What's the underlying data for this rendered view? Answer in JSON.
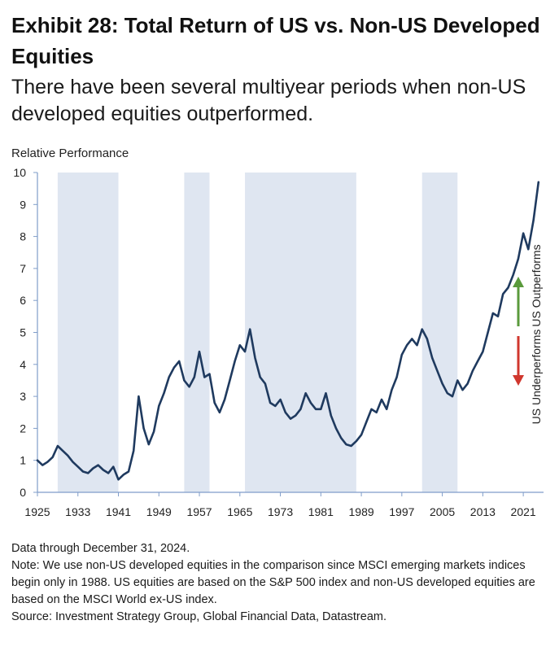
{
  "header": {
    "title": "Exhibit 28: Total Return of US vs. Non-US Developed Equities",
    "subtitle": "There have been several multiyear periods when non-US developed equities outperformed."
  },
  "footer": {
    "data_through": "Data through December 31, 2024.",
    "note": "Note: We use non-US developed equities in the comparison since MSCI emerging markets indices begin only in 1988. US equities are based on the S&P 500 index and non-US developed equities are based on the MSCI World ex-US index.",
    "source": "Source: Investment Strategy Group, Global Financial Data, Datastream."
  },
  "colors": {
    "line": "#1f3a5f",
    "shade": "#dfe6f1",
    "axis": "#7f9cc9",
    "up_arrow": "#5a9a3c",
    "down_arrow": "#d0372e"
  },
  "chart_data": {
    "type": "line",
    "ylabel": "Relative Performance",
    "ylim": [
      0,
      10
    ],
    "yticks": [
      0,
      1,
      2,
      3,
      4,
      5,
      6,
      7,
      8,
      9,
      10
    ],
    "xlim": [
      1925,
      2025
    ],
    "xticks": [
      1925,
      1933,
      1941,
      1949,
      1957,
      1965,
      1973,
      1981,
      1989,
      1997,
      2005,
      2013,
      2021
    ],
    "grid": false,
    "shaded_periods": [
      [
        1929,
        1941
      ],
      [
        1954,
        1959
      ],
      [
        1966,
        1988
      ],
      [
        2001,
        2008
      ]
    ],
    "annotations": {
      "up": "US Outperforms",
      "down": "US Underperforms"
    },
    "series": [
      {
        "x": [
          1925,
          1926,
          1927,
          1928,
          1929,
          1930,
          1931,
          1932,
          1933,
          1934,
          1935,
          1936,
          1937,
          1938,
          1939,
          1940,
          1941,
          1942,
          1943,
          1944,
          1945,
          1946,
          1947,
          1948,
          1949,
          1950,
          1951,
          1952,
          1953,
          1954,
          1955,
          1956,
          1957,
          1958,
          1959,
          1960,
          1961,
          1962,
          1963,
          1964,
          1965,
          1966,
          1967,
          1968,
          1969,
          1970,
          1971,
          1972,
          1973,
          1974,
          1975,
          1976,
          1977,
          1978,
          1979,
          1980,
          1981,
          1982,
          1983,
          1984,
          1985,
          1986,
          1987,
          1988,
          1989,
          1990,
          1991,
          1992,
          1993,
          1994,
          1995,
          1996,
          1997,
          1998,
          1999,
          2000,
          2001,
          2002,
          2003,
          2004,
          2005,
          2006,
          2007,
          2008,
          2009,
          2010,
          2011,
          2012,
          2013,
          2014,
          2015,
          2016,
          2017,
          2018,
          2019,
          2020,
          2021,
          2022,
          2023,
          2024
        ],
        "values": [
          1.0,
          0.85,
          0.95,
          1.1,
          1.45,
          1.3,
          1.15,
          0.95,
          0.8,
          0.65,
          0.6,
          0.75,
          0.85,
          0.7,
          0.6,
          0.8,
          0.4,
          0.55,
          0.65,
          1.3,
          3.0,
          2.0,
          1.5,
          1.9,
          2.7,
          3.1,
          3.6,
          3.9,
          4.1,
          3.5,
          3.3,
          3.6,
          4.4,
          3.6,
          3.7,
          2.8,
          2.5,
          2.9,
          3.5,
          4.1,
          4.6,
          4.4,
          5.1,
          4.2,
          3.6,
          3.4,
          2.8,
          2.7,
          2.9,
          2.5,
          2.3,
          2.4,
          2.6,
          3.1,
          2.8,
          2.6,
          2.6,
          3.1,
          2.4,
          2.0,
          1.7,
          1.5,
          1.45,
          1.6,
          1.8,
          2.2,
          2.6,
          2.5,
          2.9,
          2.6,
          3.2,
          3.6,
          4.3,
          4.6,
          4.8,
          4.6,
          5.1,
          4.8,
          4.2,
          3.8,
          3.4,
          3.1,
          3.0,
          3.5,
          3.2,
          3.4,
          3.8,
          4.1,
          4.4,
          5.0,
          5.6,
          5.5,
          6.2,
          6.4,
          6.8,
          7.3,
          8.1,
          7.6,
          8.5,
          9.7
        ]
      }
    ]
  }
}
